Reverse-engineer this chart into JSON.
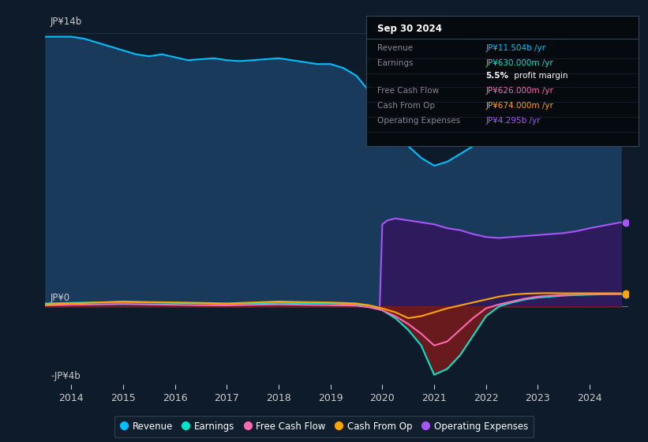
{
  "bg_color": "#0d1b2a",
  "plot_bg_color": "#0d1b2a",
  "ylim": [
    -4,
    15
  ],
  "xlabel_years": [
    2014,
    2015,
    2016,
    2017,
    2018,
    2019,
    2020,
    2021,
    2022,
    2023,
    2024
  ],
  "legend_items": [
    {
      "label": "Revenue",
      "color": "#00bfff",
      "type": "circle"
    },
    {
      "label": "Earnings",
      "color": "#00e5cc",
      "type": "circle"
    },
    {
      "label": "Free Cash Flow",
      "color": "#ff69b4",
      "type": "circle"
    },
    {
      "label": "Cash From Op",
      "color": "#ffa500",
      "type": "circle"
    },
    {
      "label": "Operating Expenses",
      "color": "#a855f7",
      "type": "circle"
    }
  ],
  "info_box": {
    "title": "Sep 30 2024",
    "rows": [
      {
        "label": "Revenue",
        "value": "JP¥11.504b /yr",
        "value_color": "#00bfff"
      },
      {
        "label": "Earnings",
        "value": "JP¥630.000m /yr",
        "value_color": "#00e5cc"
      },
      {
        "label": "",
        "value": "5.5% profit margin",
        "value_color": "#ffffff",
        "is_margin": true
      },
      {
        "label": "Free Cash Flow",
        "value": "JP¥626.000m /yr",
        "value_color": "#ff69b4"
      },
      {
        "label": "Cash From Op",
        "value": "JP¥674.000m /yr",
        "value_color": "#ffa500"
      },
      {
        "label": "Operating Expenses",
        "value": "JP¥4.295b /yr",
        "value_color": "#a855f7"
      }
    ]
  },
  "revenue": {
    "years": [
      2013.5,
      2014.0,
      2014.25,
      2014.5,
      2014.75,
      2015.0,
      2015.25,
      2015.5,
      2015.75,
      2016.0,
      2016.25,
      2016.5,
      2016.75,
      2017.0,
      2017.25,
      2017.5,
      2017.75,
      2018.0,
      2018.25,
      2018.5,
      2018.75,
      2019.0,
      2019.25,
      2019.5,
      2019.75,
      2020.0,
      2020.25,
      2020.5,
      2020.75,
      2021.0,
      2021.25,
      2021.5,
      2021.75,
      2022.0,
      2022.25,
      2022.5,
      2022.75,
      2023.0,
      2023.25,
      2023.5,
      2023.75,
      2024.0,
      2024.3,
      2024.6
    ],
    "values": [
      13.8,
      13.8,
      13.7,
      13.5,
      13.3,
      13.1,
      12.9,
      12.8,
      12.9,
      12.75,
      12.6,
      12.65,
      12.7,
      12.6,
      12.55,
      12.6,
      12.65,
      12.7,
      12.6,
      12.5,
      12.4,
      12.4,
      12.2,
      11.8,
      11.0,
      10.0,
      9.0,
      8.2,
      7.6,
      7.2,
      7.4,
      7.8,
      8.2,
      8.5,
      9.0,
      9.5,
      9.8,
      10.2,
      10.5,
      10.8,
      11.1,
      11.5,
      11.5,
      11.5
    ],
    "fill_color": "#1a3a5c",
    "line_color": "#00bfff"
  },
  "operating_expenses": {
    "years": [
      2019.95,
      2020.0,
      2020.1,
      2020.25,
      2020.5,
      2020.75,
      2021.0,
      2021.25,
      2021.5,
      2021.75,
      2022.0,
      2022.25,
      2022.5,
      2022.75,
      2023.0,
      2023.25,
      2023.5,
      2023.75,
      2024.0,
      2024.3,
      2024.6
    ],
    "values": [
      0.0,
      4.2,
      4.4,
      4.5,
      4.4,
      4.3,
      4.2,
      4.0,
      3.9,
      3.7,
      3.55,
      3.5,
      3.55,
      3.6,
      3.65,
      3.7,
      3.75,
      3.85,
      4.0,
      4.15,
      4.3
    ],
    "fill_color": "#2d1b5e",
    "line_color": "#a855f7"
  },
  "earnings": {
    "years": [
      2013.5,
      2014.0,
      2014.5,
      2015.0,
      2015.5,
      2016.0,
      2016.5,
      2017.0,
      2017.5,
      2018.0,
      2018.5,
      2019.0,
      2019.5,
      2019.75,
      2020.0,
      2020.25,
      2020.5,
      2020.75,
      2021.0,
      2021.25,
      2021.5,
      2021.75,
      2022.0,
      2022.25,
      2022.5,
      2022.75,
      2023.0,
      2023.25,
      2023.5,
      2023.75,
      2024.0,
      2024.3,
      2024.6
    ],
    "values": [
      0.15,
      0.18,
      0.2,
      0.22,
      0.2,
      0.18,
      0.15,
      0.12,
      0.15,
      0.18,
      0.16,
      0.15,
      0.1,
      0.05,
      -0.2,
      -0.6,
      -1.2,
      -2.0,
      -3.5,
      -3.2,
      -2.5,
      -1.5,
      -0.5,
      0.0,
      0.2,
      0.35,
      0.45,
      0.5,
      0.55,
      0.58,
      0.6,
      0.62,
      0.63
    ],
    "color": "#00e5cc",
    "neg_fill_color": "#7a1a1a"
  },
  "free_cash_flow": {
    "years": [
      2013.5,
      2014.0,
      2014.5,
      2015.0,
      2015.5,
      2016.0,
      2016.5,
      2017.0,
      2017.5,
      2018.0,
      2018.5,
      2019.0,
      2019.5,
      2019.75,
      2020.0,
      2020.25,
      2020.5,
      2020.75,
      2021.0,
      2021.25,
      2021.5,
      2021.75,
      2022.0,
      2022.25,
      2022.5,
      2022.75,
      2023.0,
      2023.25,
      2023.5,
      2023.75,
      2024.0,
      2024.3,
      2024.6
    ],
    "values": [
      0.05,
      0.08,
      0.1,
      0.12,
      0.1,
      0.08,
      0.06,
      0.05,
      0.08,
      0.1,
      0.08,
      0.06,
      0.04,
      -0.05,
      -0.2,
      -0.5,
      -0.9,
      -1.4,
      -2.0,
      -1.8,
      -1.2,
      -0.6,
      -0.1,
      0.1,
      0.25,
      0.4,
      0.5,
      0.55,
      0.58,
      0.6,
      0.62,
      0.63,
      0.63
    ],
    "color": "#ff69b4"
  },
  "cash_from_op": {
    "years": [
      2013.5,
      2014.0,
      2014.5,
      2015.0,
      2015.5,
      2016.0,
      2016.5,
      2017.0,
      2017.5,
      2018.0,
      2018.5,
      2019.0,
      2019.5,
      2019.75,
      2020.0,
      2020.25,
      2020.5,
      2020.75,
      2021.0,
      2021.25,
      2021.5,
      2021.75,
      2022.0,
      2022.25,
      2022.5,
      2022.75,
      2023.0,
      2023.25,
      2023.5,
      2023.75,
      2024.0,
      2024.3,
      2024.6
    ],
    "values": [
      0.1,
      0.15,
      0.2,
      0.25,
      0.22,
      0.2,
      0.18,
      0.15,
      0.2,
      0.25,
      0.22,
      0.2,
      0.15,
      0.05,
      -0.1,
      -0.3,
      -0.6,
      -0.5,
      -0.3,
      -0.1,
      0.05,
      0.2,
      0.35,
      0.5,
      0.6,
      0.65,
      0.67,
      0.68,
      0.67,
      0.67,
      0.67,
      0.67,
      0.67
    ],
    "color": "#ffa500"
  }
}
